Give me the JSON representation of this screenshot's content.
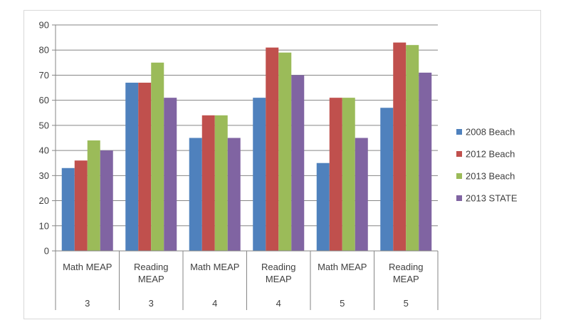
{
  "chart_data": {
    "type": "bar",
    "categories": [
      {
        "test": "Math MEAP",
        "grade": "3"
      },
      {
        "test": "Reading MEAP",
        "grade": "3"
      },
      {
        "test": "Math MEAP",
        "grade": "4"
      },
      {
        "test": "Reading MEAP",
        "grade": "4"
      },
      {
        "test": "Math MEAP",
        "grade": "5"
      },
      {
        "test": "Reading MEAP",
        "grade": "5"
      }
    ],
    "series": [
      {
        "name": "2008 Beach",
        "color": "#4f81bd",
        "values": [
          33,
          67,
          45,
          61,
          35,
          57
        ]
      },
      {
        "name": "2012 Beach",
        "color": "#c0504d",
        "values": [
          36,
          67,
          54,
          81,
          61,
          83
        ]
      },
      {
        "name": "2013 Beach",
        "color": "#9bbb59",
        "values": [
          44,
          75,
          54,
          79,
          61,
          82
        ]
      },
      {
        "name": "2013 STATE",
        "color": "#8064a2",
        "values": [
          40,
          61,
          45,
          70,
          45,
          71
        ]
      }
    ],
    "ylim": [
      0,
      90
    ],
    "yticks": [
      0,
      10,
      20,
      30,
      40,
      50,
      60,
      70,
      80,
      90
    ],
    "grid": true,
    "legend_position": "right",
    "title": "",
    "xlabel": "",
    "ylabel": ""
  }
}
